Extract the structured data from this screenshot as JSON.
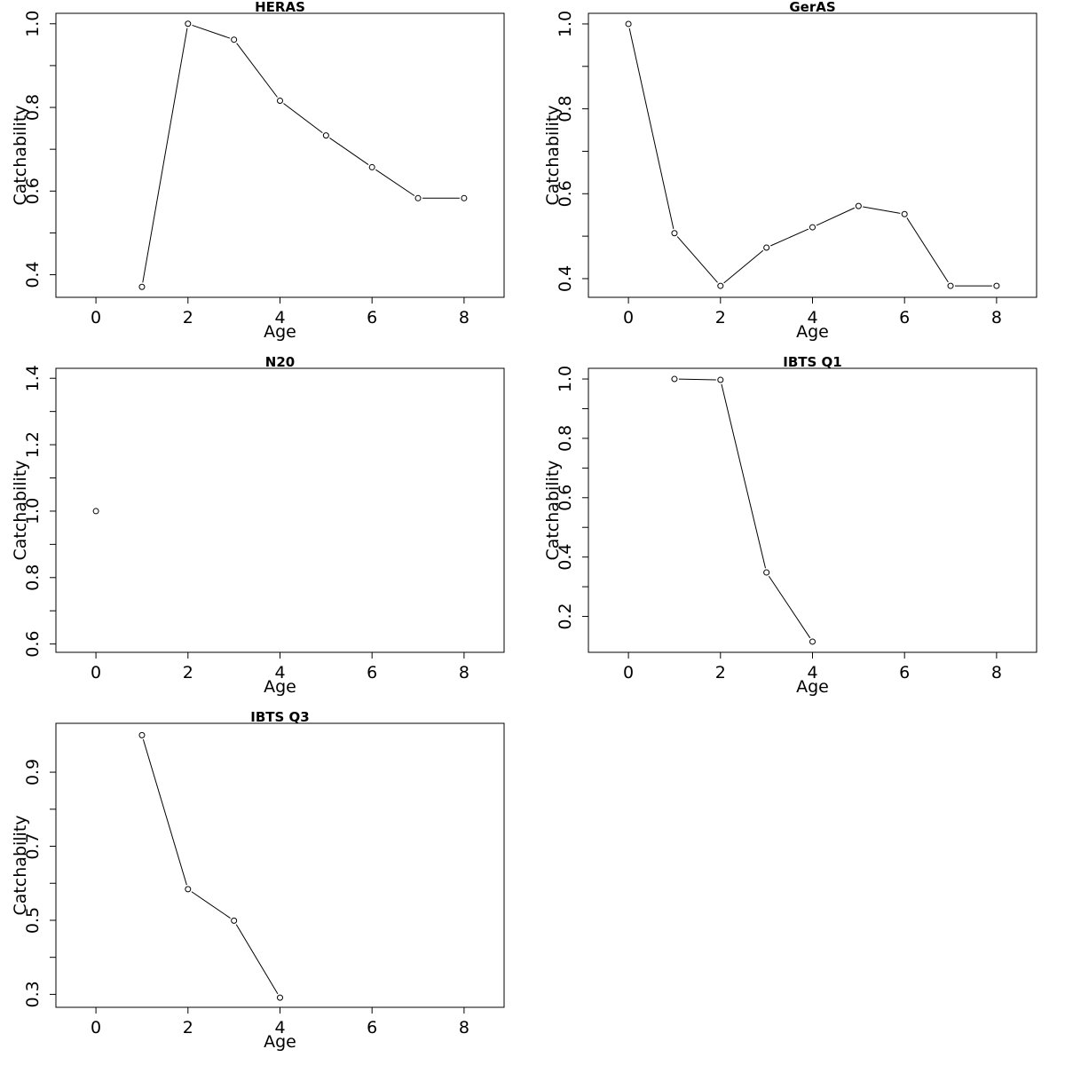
{
  "chart_data": [
    {
      "type": "line",
      "title": "HERAS",
      "xlabel": "Age",
      "ylabel": "Catchability",
      "xlim": [
        -0.87,
        8.87
      ],
      "ylim": [
        0.346,
        1.025
      ],
      "xticks": [
        0,
        2,
        4,
        6,
        8
      ],
      "yticks": [
        0.4,
        0.5,
        0.6,
        0.7,
        0.8,
        0.9,
        1.0
      ],
      "yticklabels": [
        "0.4",
        "",
        "0.6",
        "",
        "0.8",
        "",
        "1.0"
      ],
      "x": [
        1,
        2,
        3,
        4,
        5,
        6,
        7,
        8
      ],
      "values": [
        0.371,
        1.0,
        0.962,
        0.816,
        0.733,
        0.657,
        0.583,
        0.583
      ],
      "grid": false
    },
    {
      "type": "line",
      "title": "GerAS",
      "xlabel": "Age",
      "ylabel": "Catchability",
      "xlim": [
        -0.87,
        8.87
      ],
      "ylim": [
        0.356,
        1.025
      ],
      "xticks": [
        0,
        2,
        4,
        6,
        8
      ],
      "yticks": [
        0.4,
        0.5,
        0.6,
        0.7,
        0.8,
        0.9,
        1.0
      ],
      "yticklabels": [
        "0.4",
        "",
        "0.6",
        "",
        "0.8",
        "",
        "1.0"
      ],
      "x": [
        0,
        1,
        2,
        3,
        4,
        5,
        6,
        7,
        8
      ],
      "values": [
        1.0,
        0.507,
        0.383,
        0.473,
        0.521,
        0.571,
        0.552,
        0.383,
        0.383
      ],
      "grid": false
    },
    {
      "type": "line",
      "title": "N20",
      "xlabel": "Age",
      "ylabel": "Catchability",
      "xlim": [
        -0.87,
        8.87
      ],
      "ylim": [
        0.575,
        1.43
      ],
      "xticks": [
        0,
        2,
        4,
        6,
        8
      ],
      "yticks": [
        0.6,
        0.7,
        0.8,
        0.9,
        1.0,
        1.1,
        1.2,
        1.3,
        1.4
      ],
      "yticklabels": [
        "0.6",
        "",
        "0.8",
        "",
        "1.0",
        "",
        "1.2",
        "",
        "1.4"
      ],
      "x": [
        0
      ],
      "values": [
        1.0
      ],
      "grid": false
    },
    {
      "type": "line",
      "title": "IBTS Q1",
      "xlabel": "Age",
      "ylabel": "Catchability",
      "xlim": [
        -0.87,
        8.87
      ],
      "ylim": [
        0.079,
        1.036
      ],
      "xticks": [
        0,
        2,
        4,
        6,
        8
      ],
      "yticks": [
        0.2,
        0.3,
        0.4,
        0.5,
        0.6,
        0.7,
        0.8,
        0.9,
        1.0
      ],
      "yticklabels": [
        "0.2",
        "",
        "0.4",
        "",
        "0.6",
        "",
        "0.8",
        "",
        "1.0"
      ],
      "x": [
        1,
        2,
        3,
        4
      ],
      "values": [
        1.0,
        0.997,
        0.348,
        0.115
      ],
      "grid": false
    },
    {
      "type": "line",
      "title": "IBTS Q3",
      "xlabel": "Age",
      "ylabel": "Catchability",
      "xlim": [
        -0.87,
        8.87
      ],
      "ylim": [
        0.265,
        1.032
      ],
      "xticks": [
        0,
        2,
        4,
        6,
        8
      ],
      "yticks": [
        0.3,
        0.4,
        0.5,
        0.6,
        0.7,
        0.8,
        0.9
      ],
      "yticklabels": [
        "0.3",
        "",
        "0.5",
        "",
        "0.7",
        "",
        "0.9"
      ],
      "x": [
        1,
        2,
        3,
        4
      ],
      "values": [
        1.0,
        0.584,
        0.499,
        0.291
      ],
      "grid": false
    }
  ]
}
